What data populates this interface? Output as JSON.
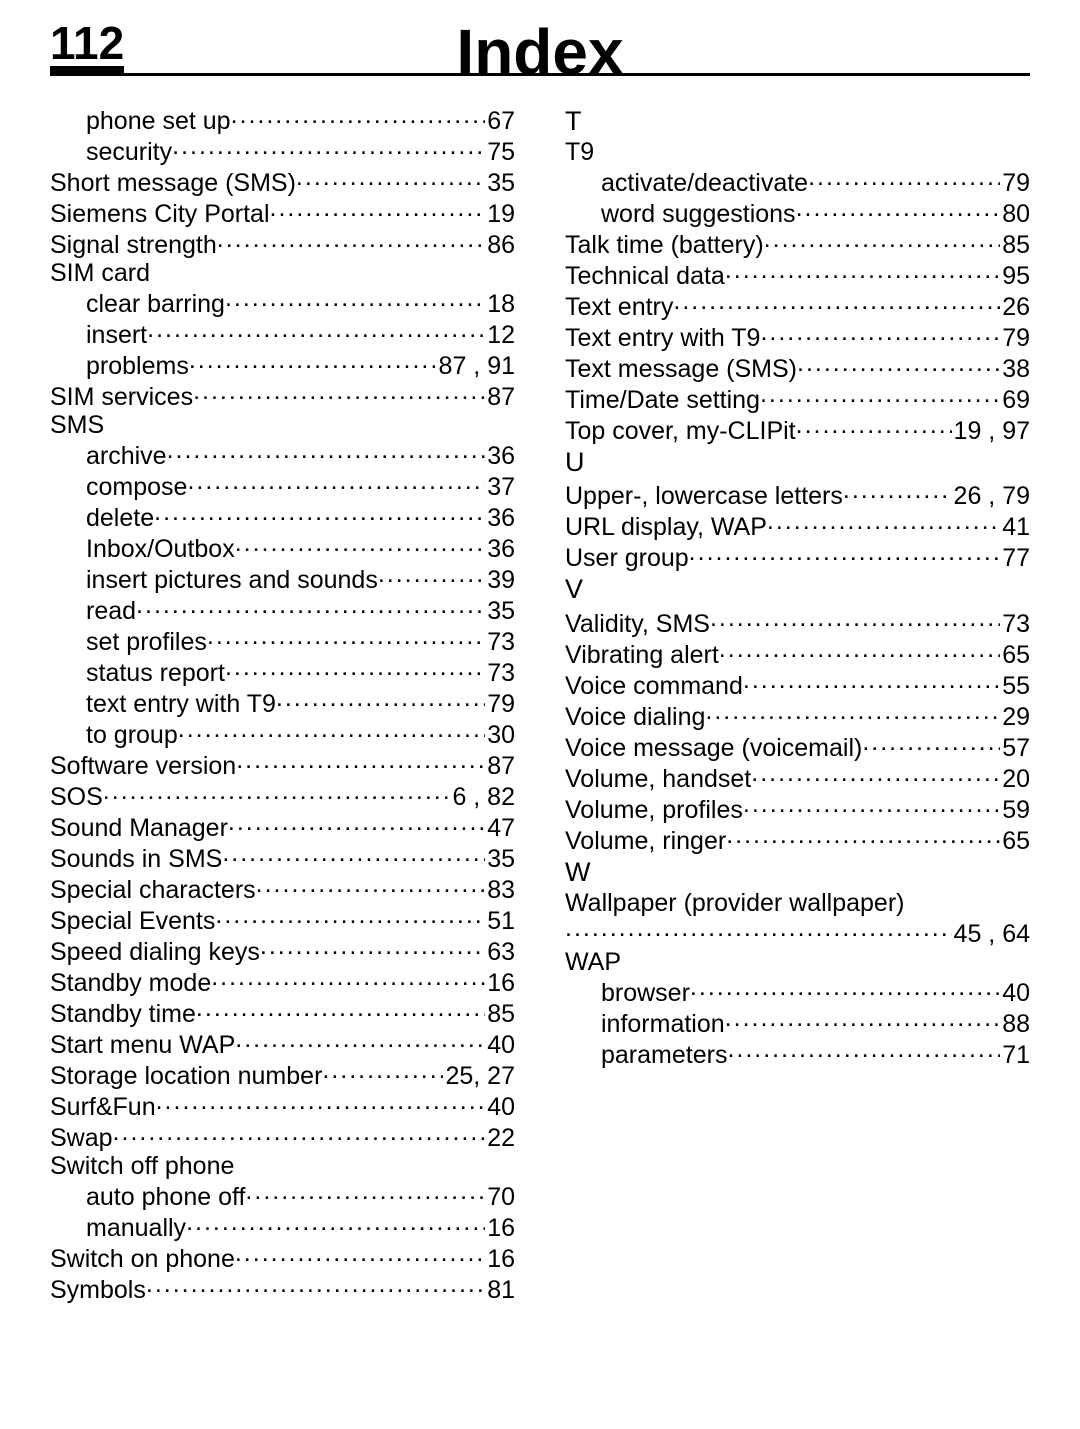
{
  "header": {
    "page_number": "112",
    "title": "Index"
  },
  "left_column": [
    {
      "type": "entry",
      "indent": true,
      "text": "phone set up",
      "page": "67"
    },
    {
      "type": "entry",
      "indent": true,
      "text": "security",
      "page": "75"
    },
    {
      "type": "entry",
      "text": "Short message (SMS)",
      "page": "35"
    },
    {
      "type": "entry",
      "text": "Siemens City Portal",
      "page": "19"
    },
    {
      "type": "entry",
      "text": "Signal strength",
      "page": "86"
    },
    {
      "type": "heading",
      "text": "SIM card"
    },
    {
      "type": "entry",
      "indent": true,
      "text": "clear barring",
      "page": "18"
    },
    {
      "type": "entry",
      "indent": true,
      "text": "insert",
      "page": "12"
    },
    {
      "type": "entry",
      "indent": true,
      "text": "problems",
      "page": "87 , 91"
    },
    {
      "type": "entry",
      "text": "SIM services",
      "page": "87"
    },
    {
      "type": "heading",
      "text": "SMS"
    },
    {
      "type": "entry",
      "indent": true,
      "text": "archive",
      "page": "36"
    },
    {
      "type": "entry",
      "indent": true,
      "text": "compose",
      "page": "37"
    },
    {
      "type": "entry",
      "indent": true,
      "text": "delete",
      "page": "36"
    },
    {
      "type": "entry",
      "indent": true,
      "text": "Inbox/Outbox",
      "page": "36"
    },
    {
      "type": "entry",
      "indent": true,
      "text": "insert pictures and sounds",
      "page": "39"
    },
    {
      "type": "entry",
      "indent": true,
      "text": "read",
      "page": "35"
    },
    {
      "type": "entry",
      "indent": true,
      "text": "set profiles",
      "page": "73"
    },
    {
      "type": "entry",
      "indent": true,
      "text": "status report",
      "page": "73"
    },
    {
      "type": "entry",
      "indent": true,
      "text": "text entry with T9",
      "page": "79"
    },
    {
      "type": "entry",
      "indent": true,
      "text": "to group",
      "page": "30"
    },
    {
      "type": "entry",
      "text": "Software version",
      "page": "87"
    },
    {
      "type": "entry",
      "text": "SOS",
      "page": "6 , 82"
    },
    {
      "type": "entry",
      "text": "Sound Manager",
      "page": "47"
    },
    {
      "type": "entry",
      "text": "Sounds in SMS",
      "page": "35"
    },
    {
      "type": "entry",
      "text": "Special characters",
      "page": "83"
    },
    {
      "type": "entry",
      "text": "Special Events",
      "page": "51"
    },
    {
      "type": "entry",
      "text": "Speed dialing keys",
      "page": "63"
    },
    {
      "type": "entry",
      "text": "Standby mode",
      "page": "16"
    },
    {
      "type": "entry",
      "text": "Standby time",
      "page": "85"
    },
    {
      "type": "entry",
      "text": "Start menu WAP",
      "page": "40"
    },
    {
      "type": "entry",
      "text": "Storage location number",
      "page": "25, 27"
    },
    {
      "type": "entry",
      "text": "Surf&Fun",
      "page": "40"
    },
    {
      "type": "entry",
      "text": "Swap",
      "page": "22"
    },
    {
      "type": "heading",
      "text": "Switch off phone"
    },
    {
      "type": "entry",
      "indent": true,
      "text": "auto phone off",
      "page": "70"
    },
    {
      "type": "entry",
      "indent": true,
      "text": "manually",
      "page": "16"
    },
    {
      "type": "entry",
      "text": "Switch on phone",
      "page": "16"
    },
    {
      "type": "entry",
      "text": "Symbols",
      "page": "81"
    }
  ],
  "right_column": [
    {
      "type": "section",
      "text": "T"
    },
    {
      "type": "heading",
      "text": "T9"
    },
    {
      "type": "entry",
      "indent": true,
      "text": "activate/deactivate",
      "page": "79"
    },
    {
      "type": "entry",
      "indent": true,
      "text": "word suggestions",
      "page": "80"
    },
    {
      "type": "entry",
      "text": "Talk time (battery)",
      "page": "85"
    },
    {
      "type": "entry",
      "text": "Technical data",
      "page": "95"
    },
    {
      "type": "entry",
      "text": "Text entry",
      "page": "26"
    },
    {
      "type": "entry",
      "text": "Text entry with T9",
      "page": "79"
    },
    {
      "type": "entry",
      "text": "Text message (SMS)",
      "page": "38"
    },
    {
      "type": "entry",
      "text": "Time/Date setting",
      "page": "69"
    },
    {
      "type": "entry",
      "text": "Top cover, my-CLIPit",
      "page": "19 , 97"
    },
    {
      "type": "section",
      "text": "U"
    },
    {
      "type": "entry",
      "text": "Upper-, lowercase letters",
      "page": "26 , 79"
    },
    {
      "type": "entry",
      "text": "URL display, WAP",
      "page": "41"
    },
    {
      "type": "entry",
      "text": "User group",
      "page": "77"
    },
    {
      "type": "section",
      "text": "V"
    },
    {
      "type": "entry",
      "text": "Validity, SMS",
      "page": "73"
    },
    {
      "type": "entry",
      "text": "Vibrating alert",
      "page": "65"
    },
    {
      "type": "entry",
      "text": "Voice command",
      "page": "55"
    },
    {
      "type": "entry",
      "text": "Voice dialing",
      "page": "29"
    },
    {
      "type": "entry",
      "text": "Voice message (voicemail)",
      "page": "57"
    },
    {
      "type": "entry",
      "text": "Volume, handset",
      "page": "20"
    },
    {
      "type": "entry",
      "text": "Volume, profiles",
      "page": "59"
    },
    {
      "type": "entry",
      "text": "Volume, ringer",
      "page": "65"
    },
    {
      "type": "section",
      "text": "W"
    },
    {
      "type": "heading",
      "text": "Wallpaper (provider wallpaper)"
    },
    {
      "type": "entry",
      "text": "",
      "page": "45 , 64"
    },
    {
      "type": "heading",
      "text": "WAP"
    },
    {
      "type": "entry",
      "indent": true,
      "text": "browser",
      "page": "40"
    },
    {
      "type": "entry",
      "indent": true,
      "text": "information",
      "page": "88"
    },
    {
      "type": "entry",
      "indent": true,
      "text": "parameters",
      "page": "71"
    }
  ]
}
